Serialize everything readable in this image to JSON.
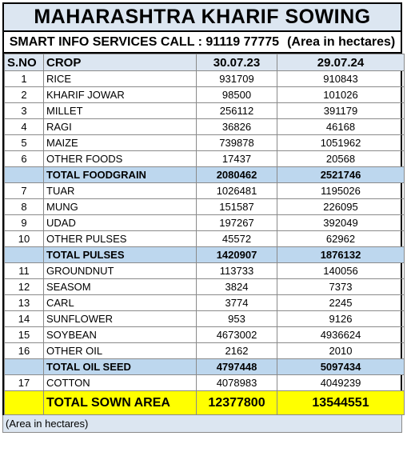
{
  "title": "MAHARASHTRA KHARIF SOWING",
  "subtitle": {
    "left": "SMART INFO SERVICES CALL : 91119 77775",
    "right": "(Area in hectares)"
  },
  "headers": {
    "sno": "S.NO",
    "crop": "CROP",
    "col1": "30.07.23",
    "col2": "29.07.24"
  },
  "rows": [
    {
      "sno": "1",
      "crop": "RICE",
      "v1": "931709",
      "v2": "910843"
    },
    {
      "sno": "2",
      "crop": "KHARIF JOWAR",
      "v1": "98500",
      "v2": "101026"
    },
    {
      "sno": "3",
      "crop": "MILLET",
      "v1": "256112",
      "v2": "391179"
    },
    {
      "sno": "4",
      "crop": "RAGI",
      "v1": "36826",
      "v2": "46168"
    },
    {
      "sno": "5",
      "crop": "MAIZE",
      "v1": "739878",
      "v2": "1051962"
    },
    {
      "sno": "6",
      "crop": "OTHER FOODS",
      "v1": "17437",
      "v2": "20568"
    },
    {
      "sno": "",
      "crop": "TOTAL FOODGRAIN",
      "v1": "2080462",
      "v2": "2521746",
      "total": true
    },
    {
      "sno": "7",
      "crop": "TUAR",
      "v1": "1026481",
      "v2": "1195026"
    },
    {
      "sno": "8",
      "crop": "MUNG",
      "v1": "151587",
      "v2": "226095"
    },
    {
      "sno": "9",
      "crop": "UDAD",
      "v1": "197267",
      "v2": "392049"
    },
    {
      "sno": "10",
      "crop": "OTHER PULSES",
      "v1": "45572",
      "v2": "62962"
    },
    {
      "sno": "",
      "crop": "TOTAL PULSES",
      "v1": "1420907",
      "v2": "1876132",
      "total": true
    },
    {
      "sno": "11",
      "crop": "GROUNDNUT",
      "v1": "113733",
      "v2": "140056"
    },
    {
      "sno": "12",
      "crop": "SEASOM",
      "v1": "3824",
      "v2": "7373"
    },
    {
      "sno": "13",
      "crop": "CARL",
      "v1": "3774",
      "v2": "2245"
    },
    {
      "sno": "14",
      "crop": "SUNFLOWER",
      "v1": "953",
      "v2": "9126"
    },
    {
      "sno": "15",
      "crop": "SOYBEAN",
      "v1": "4673002",
      "v2": "4936624"
    },
    {
      "sno": "16",
      "crop": "OTHER OIL",
      "v1": "2162",
      "v2": "2010"
    },
    {
      "sno": "",
      "crop": "TOTAL OIL SEED",
      "v1": "4797448",
      "v2": "5097434",
      "total": true
    },
    {
      "sno": "17",
      "crop": "COTTON",
      "v1": "4078983",
      "v2": "4049239"
    }
  ],
  "grand_total": {
    "sno": "",
    "crop": "TOTAL SOWN AREA",
    "v1": "12377800",
    "v2": "13544551"
  },
  "footer": "(Area in hectares)",
  "colors": {
    "header_fill": "#dce6f1",
    "total_fill": "#bdd7ee",
    "grand_fill": "#ffff00"
  }
}
